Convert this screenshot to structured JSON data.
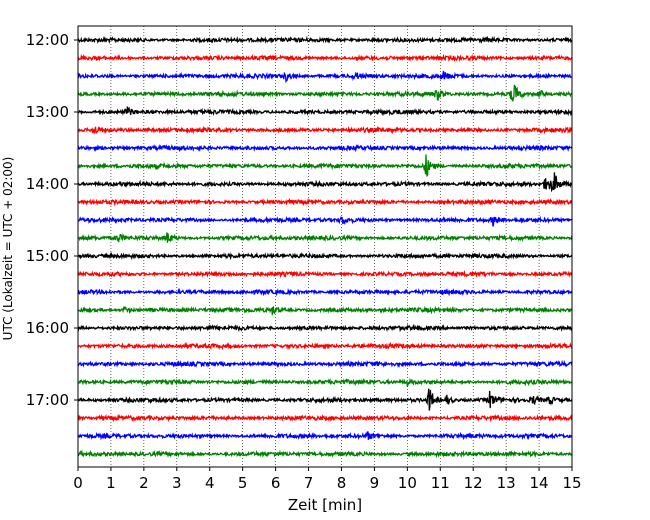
{
  "chart_data": {
    "type": "line",
    "title": "",
    "xlabel": "Zeit  [min]",
    "ylabel": "UTC (Lokalzeit = UTC + 02:00)",
    "xlim": [
      0,
      15
    ],
    "x_ticks": [
      "0",
      "1",
      "2",
      "3",
      "4",
      "5",
      "6",
      "7",
      "8",
      "9",
      "10",
      "11",
      "12",
      "13",
      "14",
      "15"
    ],
    "y_ticks": [
      "12:00",
      "13:00",
      "14:00",
      "15:00",
      "16:00",
      "17:00"
    ],
    "grid": "vertical-dotted",
    "colors": [
      "#000000",
      "#ff0000",
      "#0000ff",
      "#008000"
    ],
    "traces": [
      {
        "start": "12:00",
        "color": "#000000",
        "events": []
      },
      {
        "start": "12:15",
        "color": "#ff0000",
        "events": []
      },
      {
        "start": "12:30",
        "color": "#0000ff",
        "events": [
          {
            "t": 6.3,
            "amp": 5
          },
          {
            "t": 8.4,
            "amp": 4
          },
          {
            "t": 11.1,
            "amp": 4
          }
        ]
      },
      {
        "start": "12:45",
        "color": "#008000",
        "events": [
          {
            "t": 10.9,
            "amp": 6
          },
          {
            "t": 13.2,
            "amp": 14
          },
          {
            "t": 14.0,
            "amp": 4
          }
        ]
      },
      {
        "start": "13:00",
        "color": "#000000",
        "events": [
          {
            "t": 1.5,
            "amp": 4
          }
        ]
      },
      {
        "start": "13:15",
        "color": "#ff0000",
        "events": [
          {
            "t": 0.5,
            "amp": 4
          }
        ]
      },
      {
        "start": "13:30",
        "color": "#0000ff",
        "events": []
      },
      {
        "start": "13:45",
        "color": "#008000",
        "events": [
          {
            "t": 10.55,
            "amp": 13
          }
        ]
      },
      {
        "start": "14:00",
        "color": "#000000",
        "events": [
          {
            "t": 14.2,
            "amp": 11
          },
          {
            "t": 14.45,
            "amp": 10
          }
        ]
      },
      {
        "start": "14:15",
        "color": "#ff0000",
        "events": []
      },
      {
        "start": "14:30",
        "color": "#0000ff",
        "events": [
          {
            "t": 8.0,
            "amp": 4
          },
          {
            "t": 12.6,
            "amp": 5
          }
        ]
      },
      {
        "start": "14:45",
        "color": "#008000",
        "events": [
          {
            "t": 1.2,
            "amp": 5
          },
          {
            "t": 2.7,
            "amp": 5
          }
        ]
      },
      {
        "start": "15:00",
        "color": "#000000",
        "events": []
      },
      {
        "start": "15:15",
        "color": "#ff0000",
        "events": []
      },
      {
        "start": "15:30",
        "color": "#0000ff",
        "events": []
      },
      {
        "start": "15:45",
        "color": "#008000",
        "events": [
          {
            "t": 1.4,
            "amp": 3
          },
          {
            "t": 5.9,
            "amp": 4
          }
        ]
      },
      {
        "start": "16:00",
        "color": "#000000",
        "events": []
      },
      {
        "start": "16:15",
        "color": "#ff0000",
        "events": []
      },
      {
        "start": "16:30",
        "color": "#0000ff",
        "events": []
      },
      {
        "start": "16:45",
        "color": "#008000",
        "events": [
          {
            "t": 10.0,
            "amp": 3
          }
        ]
      },
      {
        "start": "17:00",
        "color": "#000000",
        "events": [
          {
            "t": 10.65,
            "amp": 14
          },
          {
            "t": 11.2,
            "amp": 5
          },
          {
            "t": 12.5,
            "amp": 8
          },
          {
            "t": 13.8,
            "amp": 4
          },
          {
            "t": 14.3,
            "amp": 4
          }
        ]
      },
      {
        "start": "17:15",
        "color": "#ff0000",
        "events": []
      },
      {
        "start": "17:30",
        "color": "#0000ff",
        "events": [
          {
            "t": 8.8,
            "amp": 3
          }
        ]
      },
      {
        "start": "17:45",
        "color": "#008000",
        "events": []
      }
    ]
  }
}
